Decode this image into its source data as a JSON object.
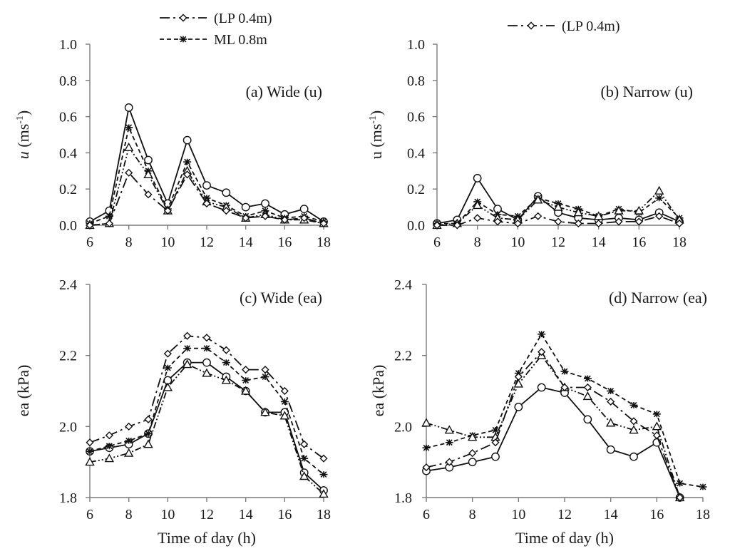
{
  "legend_a": [
    {
      "label": "(LP 0.4m)",
      "series": "LP 0.4m"
    },
    {
      "label": "ML 0.8m",
      "series": "ML 0.8m"
    }
  ],
  "legend_b": [
    {
      "label": "(LP 0.4m)",
      "series": "LP 0.4m"
    }
  ],
  "chart_data": [
    {
      "id": "a",
      "type": "line",
      "title": "(a)  Wide (u)",
      "xlabel": "",
      "ylabel": "u (ms-1)",
      "ylabel_main": "u",
      "ylabel_unit": "(ms",
      "ylabel_sup": "-1",
      "ylabel_close": ")",
      "xlim": [
        6,
        18
      ],
      "ylim": [
        0,
        1
      ],
      "xticks": [
        6,
        8,
        10,
        12,
        14,
        16,
        18
      ],
      "yticks": [
        "0.0",
        "0.2",
        "0.4",
        "0.6",
        "0.8",
        "1.0"
      ],
      "x": [
        6,
        7,
        8,
        9,
        10,
        11,
        12,
        13,
        14,
        15,
        16,
        17,
        18
      ],
      "series": [
        {
          "name": "circle",
          "marker": "circle",
          "dash": "",
          "values": [
            0.02,
            0.08,
            0.65,
            0.36,
            0.12,
            0.47,
            0.22,
            0.18,
            0.1,
            0.12,
            0.06,
            0.09,
            0.02
          ]
        },
        {
          "name": "ML 0.8m",
          "marker": "star",
          "dash": "6,4",
          "values": [
            0.01,
            0.05,
            0.54,
            0.3,
            0.09,
            0.35,
            0.15,
            0.11,
            0.05,
            0.08,
            0.04,
            0.05,
            0.02
          ]
        },
        {
          "name": "triangle",
          "marker": "triangle",
          "dash": "9,3,2,3,2,3",
          "values": [
            0.0,
            0.01,
            0.43,
            0.28,
            0.08,
            0.3,
            0.13,
            0.1,
            0.04,
            0.06,
            0.03,
            0.03,
            0.01
          ]
        },
        {
          "name": "LP 0.4m",
          "marker": "diamond",
          "dash": "14,5,3,5",
          "values": [
            0.0,
            0.01,
            0.29,
            0.17,
            0.08,
            0.28,
            0.12,
            0.08,
            0.04,
            0.05,
            0.03,
            0.04,
            0.01
          ]
        }
      ]
    },
    {
      "id": "b",
      "type": "line",
      "title": "(b)  Narrow (u)",
      "xlabel": "",
      "ylabel": "u (ms-1)",
      "ylabel_main": "u",
      "ylabel_unit": "(ms",
      "ylabel_sup": "-1",
      "ylabel_close": ")",
      "xlim": [
        6,
        18
      ],
      "ylim": [
        0,
        1
      ],
      "xticks": [
        6,
        8,
        10,
        12,
        14,
        16,
        18
      ],
      "yticks": [
        "0.0",
        "0.2",
        "0.4",
        "0.6",
        "0.8",
        "1.0"
      ],
      "x": [
        6,
        7,
        8,
        9,
        10,
        11,
        12,
        13,
        14,
        15,
        16,
        17,
        18
      ],
      "series": [
        {
          "name": "circle",
          "marker": "circle",
          "dash": "",
          "values": [
            0.01,
            0.03,
            0.26,
            0.09,
            0.03,
            0.16,
            0.07,
            0.04,
            0.03,
            0.04,
            0.03,
            0.07,
            0.02
          ]
        },
        {
          "name": "ML 0.8m",
          "marker": "star",
          "dash": "6,4",
          "values": [
            0.01,
            0.01,
            0.13,
            0.06,
            0.05,
            0.15,
            0.12,
            0.09,
            0.05,
            0.09,
            0.07,
            0.15,
            0.04
          ]
        },
        {
          "name": "triangle",
          "marker": "triangle",
          "dash": "9,3,2,3,2,3",
          "values": [
            0.0,
            0.01,
            0.11,
            0.04,
            0.03,
            0.14,
            0.1,
            0.07,
            0.05,
            0.08,
            0.08,
            0.19,
            0.03
          ]
        },
        {
          "name": "LP 0.4m",
          "marker": "diamond",
          "dash": "14,5,3,5",
          "values": [
            0.0,
            0.0,
            0.04,
            0.02,
            0.01,
            0.05,
            0.02,
            0.01,
            0.01,
            0.02,
            0.02,
            0.05,
            0.01
          ]
        }
      ]
    },
    {
      "id": "c",
      "type": "line",
      "title": "(c)  Wide (ea)",
      "xlabel": "Time of day (h)",
      "ylabel": "ea (kPa)",
      "xlim": [
        6,
        18
      ],
      "ylim": [
        1.8,
        2.4
      ],
      "xticks": [
        6,
        8,
        10,
        12,
        14,
        16,
        18
      ],
      "yticks": [
        "1.8",
        "2.0",
        "2.2",
        "2.4"
      ],
      "x": [
        6,
        7,
        8,
        9,
        10,
        11,
        12,
        13,
        14,
        15,
        16,
        17,
        18
      ],
      "series": [
        {
          "name": "circle",
          "marker": "circle",
          "dash": "",
          "values": [
            1.93,
            1.94,
            1.95,
            1.98,
            2.13,
            2.18,
            2.18,
            2.14,
            2.1,
            2.04,
            2.04,
            1.87,
            1.82
          ]
        },
        {
          "name": "ML 0.8m",
          "marker": "star",
          "dash": "6,4",
          "values": [
            1.93,
            1.945,
            1.96,
            1.98,
            2.165,
            2.22,
            2.22,
            2.18,
            2.13,
            2.14,
            2.07,
            1.91,
            1.865
          ]
        },
        {
          "name": "triangle",
          "marker": "triangle",
          "dash": "9,3,2,3,2,3",
          "values": [
            1.9,
            1.91,
            1.925,
            1.95,
            2.11,
            2.175,
            2.15,
            2.13,
            2.1,
            2.04,
            2.03,
            1.86,
            1.81
          ]
        },
        {
          "name": "LP 0.4m",
          "marker": "diamond",
          "dash": "14,5,3,5",
          "values": [
            1.955,
            1.975,
            2.0,
            2.02,
            2.205,
            2.255,
            2.25,
            2.215,
            2.16,
            2.16,
            2.1,
            1.95,
            1.91
          ]
        }
      ]
    },
    {
      "id": "d",
      "type": "line",
      "title": "(d)  Narrow (ea)",
      "xlabel": "Time of day (h)",
      "ylabel": "ea (kPa)",
      "xlim": [
        6,
        18
      ],
      "ylim": [
        1.8,
        2.4
      ],
      "xticks": [
        6,
        8,
        10,
        12,
        14,
        16,
        18
      ],
      "yticks": [
        "1.8",
        "2.0",
        "2.2",
        "2.4"
      ],
      "x": [
        6,
        7,
        8,
        9,
        10,
        11,
        12,
        13,
        14,
        15,
        16,
        17,
        18
      ],
      "series": [
        {
          "name": "circle",
          "marker": "circle",
          "dash": "",
          "values": [
            1.875,
            1.885,
            1.9,
            1.915,
            2.055,
            2.11,
            2.095,
            2.02,
            1.935,
            1.915,
            1.955,
            1.8,
            null
          ]
        },
        {
          "name": "ML 0.8m",
          "marker": "star",
          "dash": "6,4",
          "values": [
            1.94,
            1.955,
            1.975,
            1.99,
            2.15,
            2.26,
            2.155,
            2.135,
            2.1,
            2.06,
            2.035,
            1.84,
            1.83
          ]
        },
        {
          "name": "triangle",
          "marker": "triangle",
          "dash": "9,3,2,3,2,3",
          "values": [
            2.01,
            1.99,
            1.97,
            1.97,
            2.12,
            2.2,
            2.11,
            2.085,
            2.01,
            1.99,
            2.0,
            1.8,
            null
          ]
        },
        {
          "name": "LP 0.4m",
          "marker": "diamond",
          "dash": "14,5,3,5",
          "values": [
            1.885,
            1.9,
            1.925,
            1.955,
            2.14,
            2.21,
            2.11,
            2.11,
            2.07,
            2.015,
            1.975,
            1.8,
            null
          ]
        }
      ]
    }
  ]
}
